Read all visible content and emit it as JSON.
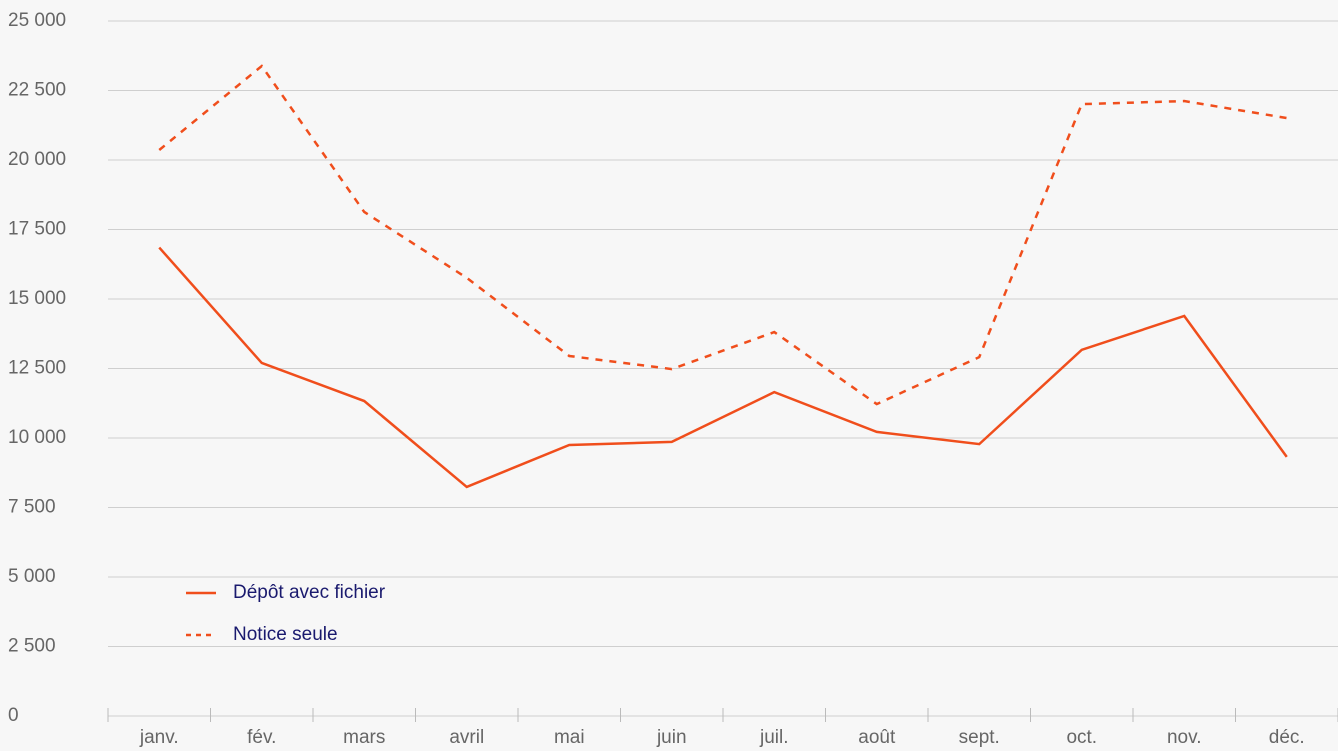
{
  "chart_data": {
    "type": "line",
    "categories": [
      "janv.",
      "fév.",
      "mars",
      "avril",
      "mai",
      "juin",
      "juil.",
      "août",
      "sept.",
      "oct.",
      "nov.",
      "déc."
    ],
    "series": [
      {
        "name": "Dépôt avec fichier",
        "color": "#f04e1c",
        "dash": false,
        "values": [
          16850,
          12700,
          11330,
          8240,
          9750,
          9860,
          11650,
          10220,
          9780,
          13170,
          14390,
          9320
        ]
      },
      {
        "name": "Notice seule",
        "color": "#f04e1c",
        "dash": true,
        "values": [
          20360,
          23380,
          18130,
          15760,
          12950,
          12480,
          13810,
          11220,
          12910,
          22010,
          22120,
          21510
        ]
      }
    ],
    "ylim": [
      0,
      25000
    ],
    "yticks": [
      0,
      {
        "value": 2500,
        "label": "2 500"
      },
      {
        "value": 5000,
        "label": "5 000"
      },
      {
        "value": 7500,
        "label": "7 500"
      },
      {
        "value": 10000,
        "label": "10 000"
      },
      {
        "value": 12500,
        "label": "12 500"
      },
      {
        "value": 15000,
        "label": "15 000"
      },
      {
        "value": 17500,
        "label": "17 500"
      },
      {
        "value": 20000,
        "label": "20 000"
      },
      {
        "value": 22500,
        "label": "22 500"
      },
      {
        "value": 25000,
        "label": "25 000"
      }
    ],
    "grid": true,
    "legend": "lower left"
  }
}
